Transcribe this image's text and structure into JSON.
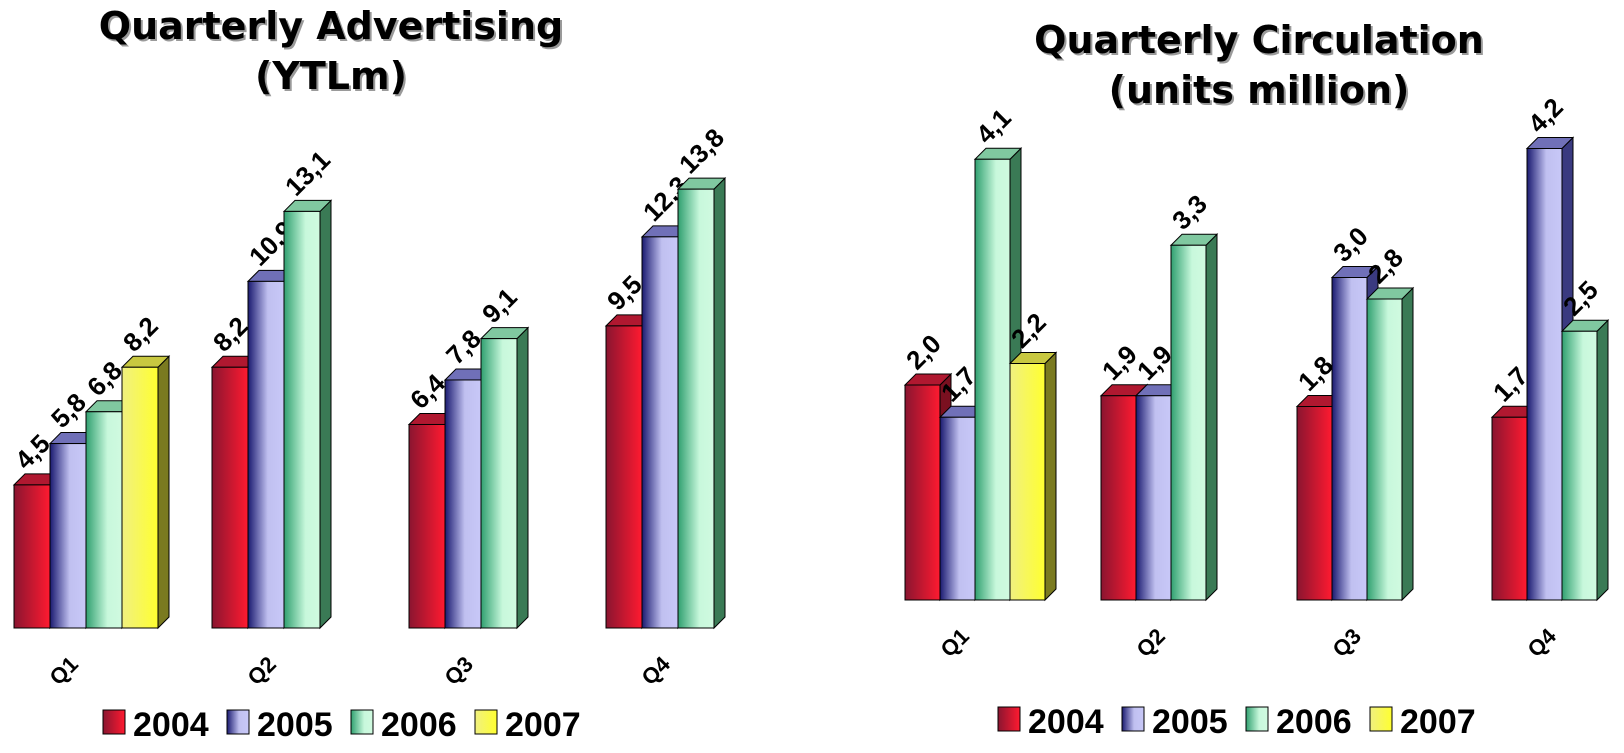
{
  "series_colors": {
    "2004": {
      "front": "#e8223a",
      "dark": "#7a1020",
      "top": "#b01830"
    },
    "2005": {
      "front": "#b8b8f0",
      "dark": "#3a3a80",
      "top": "#7070b8"
    },
    "2006": {
      "front": "#b8f0cc",
      "dark": "#3a7a55",
      "top": "#80c8a0"
    },
    "2007": {
      "front": "#f0f070",
      "dark": "#7a7a20",
      "top": "#c8c840"
    }
  },
  "chart_data": [
    {
      "type": "bar",
      "title": "Quarterly Advertising\n(YTLm)",
      "title_lines": [
        "Quarterly Advertising",
        "(YTLm)"
      ],
      "categories": [
        "Q1",
        "Q2",
        "Q3",
        "Q4"
      ],
      "series": [
        {
          "name": "2004",
          "values": [
            4.5,
            8.2,
            6.4,
            9.5
          ],
          "labels": [
            "4,5",
            "8,2",
            "6,4",
            "9,5"
          ]
        },
        {
          "name": "2005",
          "values": [
            5.8,
            10.9,
            7.8,
            12.3
          ],
          "labels": [
            "5,8",
            "10,9",
            "7,8",
            "12,3"
          ]
        },
        {
          "name": "2006",
          "values": [
            6.8,
            13.1,
            9.1,
            13.8
          ],
          "labels": [
            "6,8",
            "13,1",
            "9,1",
            "13,8"
          ]
        },
        {
          "name": "2007",
          "values": [
            8.2,
            null,
            null,
            null
          ],
          "labels": [
            "8,2",
            "",
            "",
            ""
          ]
        }
      ],
      "legend": [
        "2004",
        "2005",
        "2006",
        "2007"
      ],
      "ylim": [
        0,
        14
      ],
      "grid": false,
      "legend_position": "bottom"
    },
    {
      "type": "bar",
      "title": "Quarterly Circulation\n(units million)",
      "title_lines": [
        "Quarterly Circulation",
        "(units million)"
      ],
      "categories": [
        "Q1",
        "Q2",
        "Q3",
        "Q4"
      ],
      "series": [
        {
          "name": "2004",
          "values": [
            2.0,
            1.9,
            1.8,
            1.7
          ],
          "labels": [
            "2,0",
            "1,9",
            "1,8",
            "1,7"
          ]
        },
        {
          "name": "2005",
          "values": [
            1.7,
            1.9,
            3.0,
            4.2
          ],
          "labels": [
            "1,7",
            "1,9",
            "3,0",
            "4,2"
          ]
        },
        {
          "name": "2006",
          "values": [
            4.1,
            3.3,
            2.8,
            2.5
          ],
          "labels": [
            "4,1",
            "3,3",
            "2,8",
            "2,5"
          ]
        },
        {
          "name": "2007",
          "values": [
            2.2,
            null,
            null,
            null
          ],
          "labels": [
            "2,2",
            "",
            "",
            ""
          ]
        }
      ],
      "legend": [
        "2004",
        "2005",
        "2006",
        "2007"
      ],
      "ylim": [
        0,
        4.2
      ],
      "grid": false,
      "legend_position": "bottom"
    }
  ]
}
